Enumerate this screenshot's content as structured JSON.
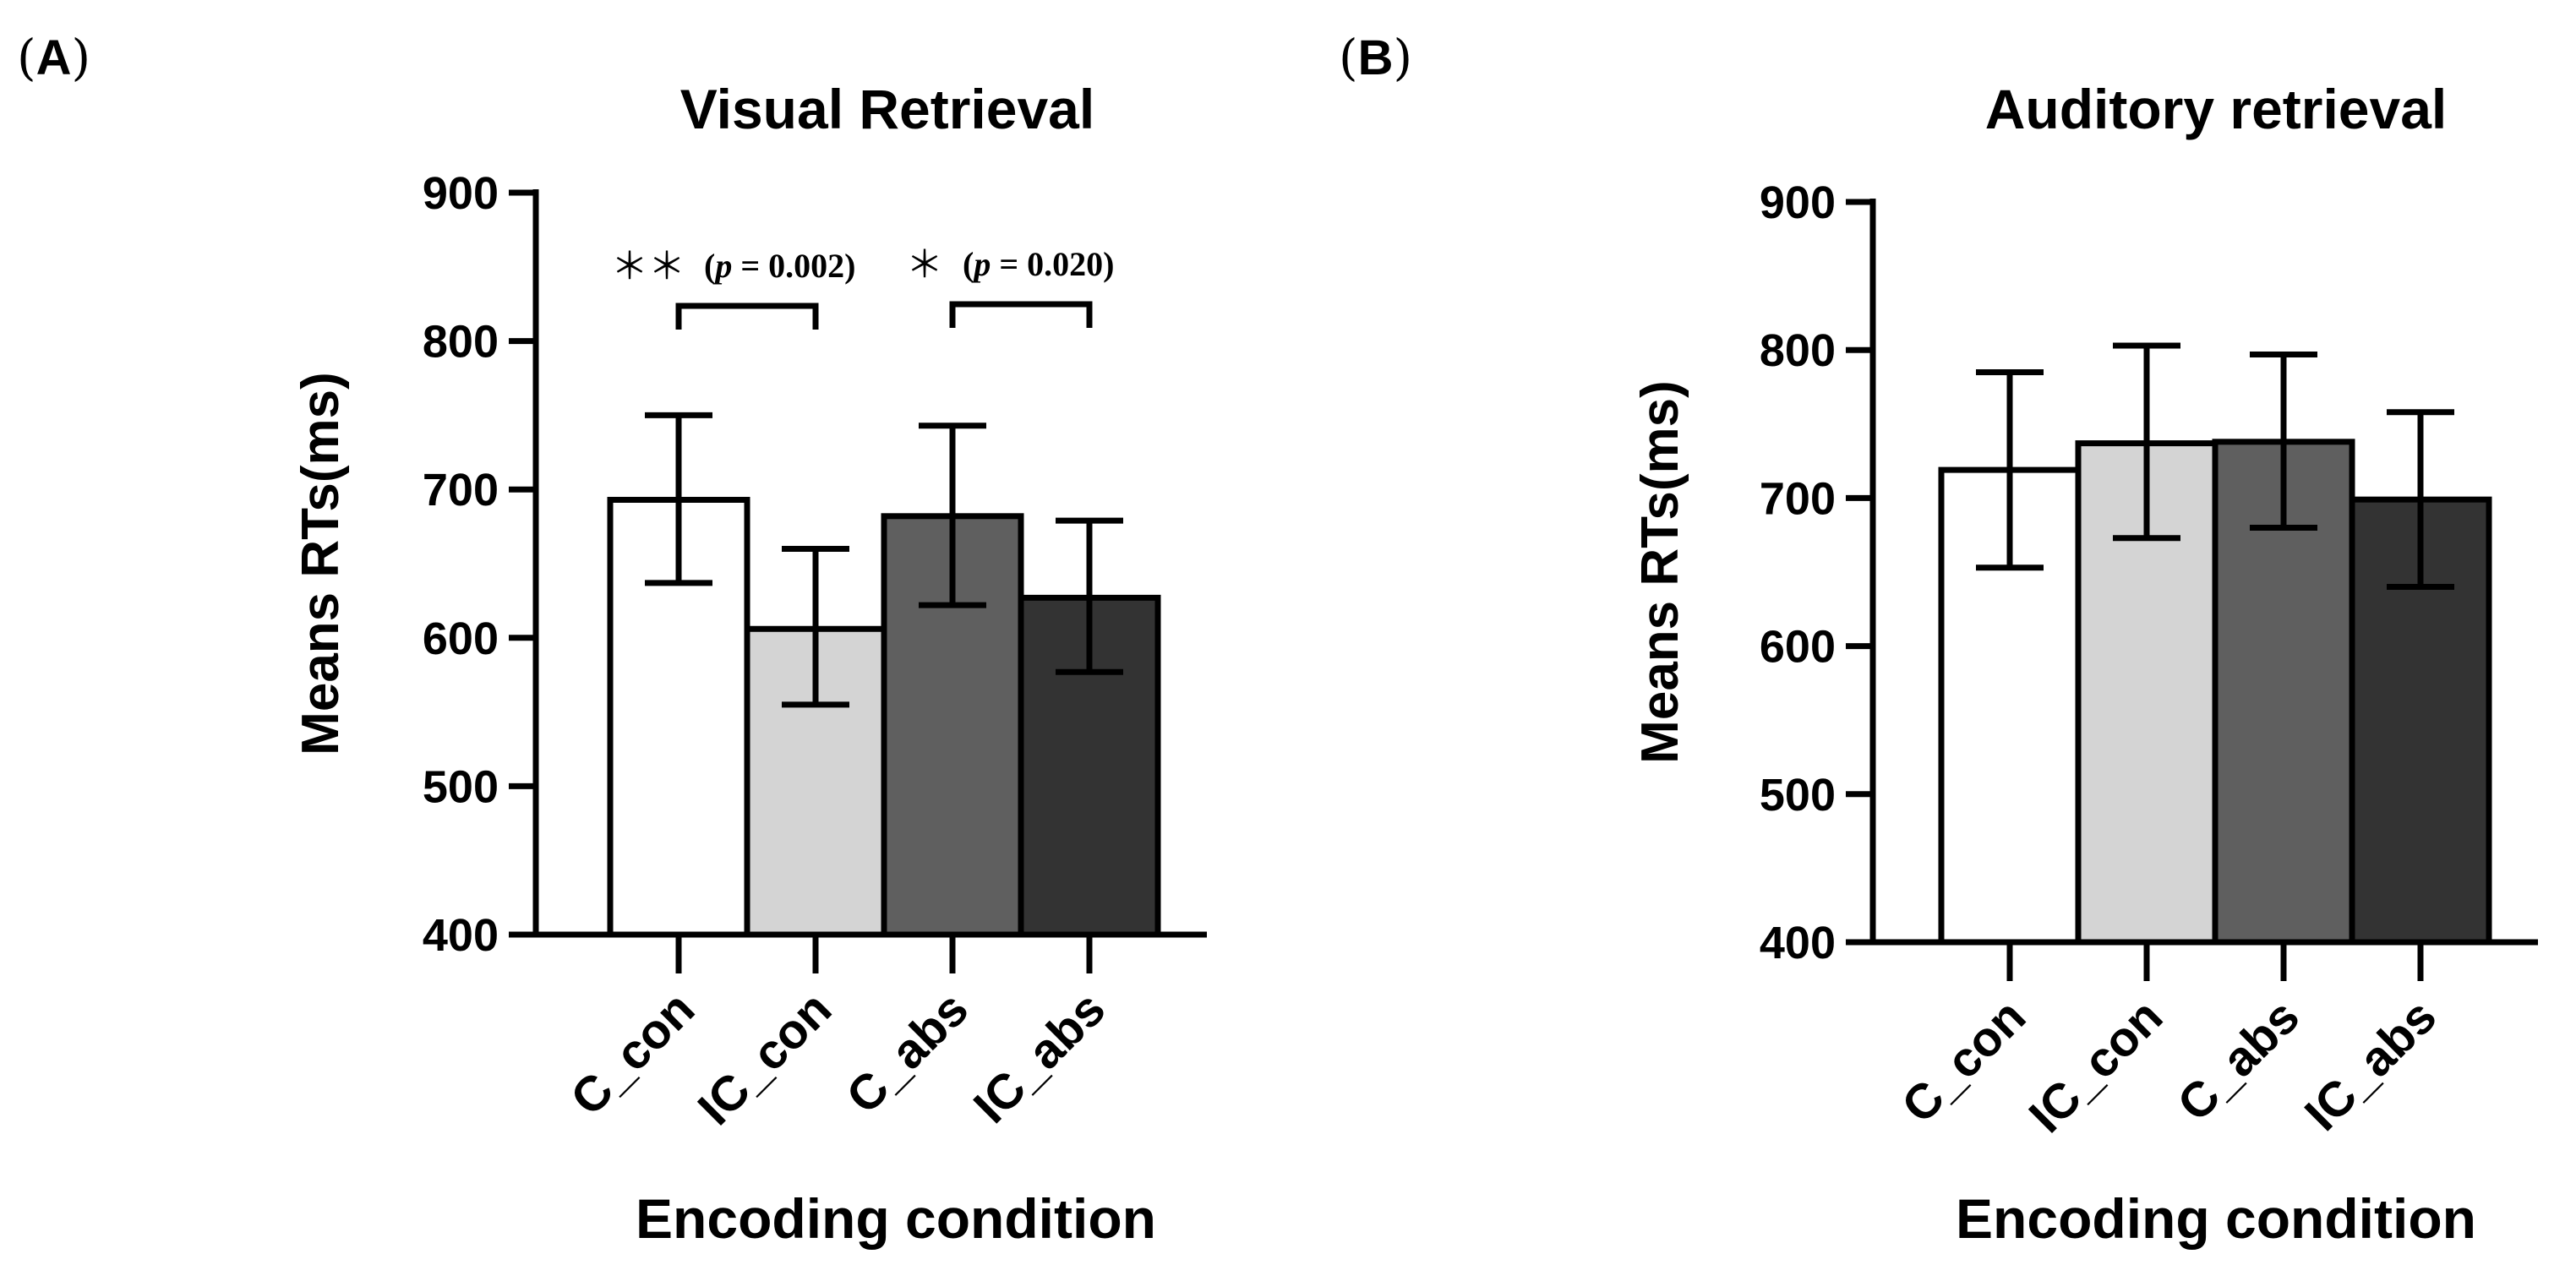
{
  "chart_data": [
    {
      "panel": "(A)",
      "type": "bar",
      "title": "Visual Retrieval",
      "xlabel": "Encoding condition",
      "ylabel": "Means RTs(ms)",
      "ylim": [
        400,
        900
      ],
      "yticks": [
        400,
        500,
        600,
        700,
        800,
        900
      ],
      "categories": [
        "C_con",
        "IC_con",
        "C_abs",
        "IC_abs"
      ],
      "values": [
        693,
        606,
        682,
        627
      ],
      "error_low": [
        637,
        555,
        622,
        577
      ],
      "error_high": [
        750,
        660,
        743,
        679
      ],
      "colors": [
        "#ffffff",
        "#d4d4d4",
        "#5f5f5f",
        "#333333"
      ],
      "annotations": [
        {
          "between": [
            0,
            1
          ],
          "stars": "＊＊",
          "p_label": "p",
          "p_value": "= 0.002)",
          "open": "("
        },
        {
          "between": [
            2,
            3
          ],
          "stars": "＊",
          "p_label": "p",
          "p_value": "= 0.020)",
          "open": "("
        }
      ]
    },
    {
      "panel": "(B)",
      "type": "bar",
      "title": "Auditory retrieval",
      "xlabel": "Encoding condition",
      "ylabel": "Means RTs(ms)",
      "ylim": [
        400,
        900
      ],
      "yticks": [
        400,
        500,
        600,
        700,
        800,
        900
      ],
      "categories": [
        "C_con",
        "IC_con",
        "C_abs",
        "IC_abs"
      ],
      "values": [
        719,
        737,
        738,
        699
      ],
      "error_low": [
        653,
        673,
        680,
        640
      ],
      "error_high": [
        785,
        803,
        797,
        758
      ],
      "colors": [
        "#ffffff",
        "#d4d4d4",
        "#5f5f5f",
        "#333333"
      ],
      "annotations": []
    }
  ]
}
